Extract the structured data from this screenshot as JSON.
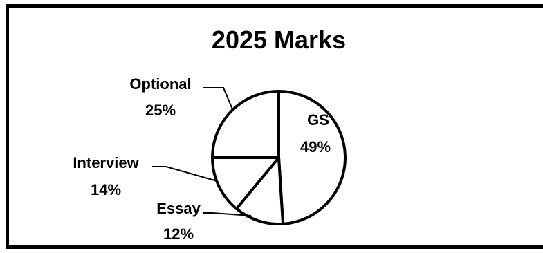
{
  "chart_data": {
    "type": "pie",
    "title": "2025 Marks",
    "slices": [
      {
        "label": "GS",
        "percent_label": "49%",
        "value": 49
      },
      {
        "label": "Essay",
        "percent_label": "12%",
        "value": 12
      },
      {
        "label": "Interview",
        "percent_label": "14%",
        "value": 14
      },
      {
        "label": "Optional",
        "percent_label": "25%",
        "value": 25
      }
    ],
    "legend": "none",
    "data_labels": "outside-with-leader-lines"
  },
  "colors": {
    "slice_fill": "#ffffff",
    "stroke": "#000000"
  }
}
